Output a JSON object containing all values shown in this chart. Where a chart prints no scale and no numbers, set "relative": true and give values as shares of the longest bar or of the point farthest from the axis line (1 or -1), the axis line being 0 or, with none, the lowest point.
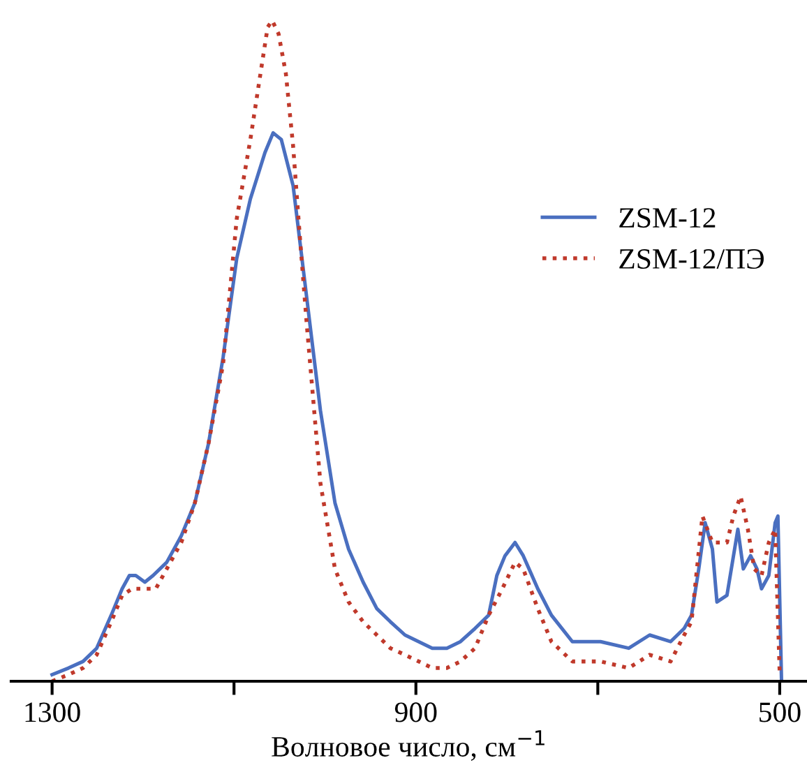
{
  "chart_data": {
    "type": "line",
    "relative": true,
    "xlabel": "Волновое число, см$^{−1}$",
    "xlim": [
      1345,
      470
    ],
    "xticks": [
      1300,
      {
        "value": 1100,
        "label": null
      },
      900,
      {
        "value": 700,
        "label": null
      },
      500
    ],
    "legend": "right",
    "grid": false,
    "series": [
      {
        "name": "ZSM-12",
        "color": "#4a6fc0",
        "line_style": "solid",
        "x": [
          1300,
          1282,
          1266,
          1251,
          1235,
          1223,
          1215,
          1208,
          1198,
          1189,
          1174,
          1158,
          1143,
          1128,
          1112,
          1097,
          1082,
          1066,
          1057,
          1048,
          1035,
          1020,
          1005,
          989,
          974,
          958,
          943,
          928,
          912,
          897,
          882,
          866,
          851,
          835,
          820,
          811,
          802,
          791,
          782,
          766,
          751,
          728,
          697,
          666,
          643,
          620,
          605,
          597,
          589,
          582,
          574,
          569,
          558,
          546,
          540,
          532,
          525,
          520,
          512,
          505,
          502,
          498
        ],
        "values": [
          0.01,
          0.02,
          0.03,
          0.05,
          0.1,
          0.14,
          0.16,
          0.16,
          0.15,
          0.16,
          0.18,
          0.22,
          0.27,
          0.36,
          0.49,
          0.64,
          0.73,
          0.8,
          0.83,
          0.82,
          0.75,
          0.58,
          0.41,
          0.27,
          0.2,
          0.15,
          0.11,
          0.09,
          0.07,
          0.06,
          0.05,
          0.05,
          0.06,
          0.08,
          0.1,
          0.16,
          0.19,
          0.21,
          0.19,
          0.14,
          0.1,
          0.06,
          0.06,
          0.05,
          0.07,
          0.06,
          0.08,
          0.1,
          0.17,
          0.24,
          0.2,
          0.12,
          0.13,
          0.23,
          0.17,
          0.19,
          0.17,
          0.14,
          0.16,
          0.24,
          0.25,
          0.0
        ]
      },
      {
        "name": "ZSM-12/ПЭ",
        "color": "#c0392b",
        "line_style": "dotted",
        "x": [
          1300,
          1282,
          1266,
          1251,
          1235,
          1223,
          1212,
          1205,
          1195,
          1186,
          1174,
          1158,
          1143,
          1128,
          1112,
          1097,
          1082,
          1072,
          1063,
          1058,
          1051,
          1043,
          1035,
          1028,
          1020,
          1005,
          989,
          974,
          958,
          943,
          928,
          912,
          897,
          882,
          866,
          851,
          835,
          820,
          805,
          791,
          782,
          766,
          751,
          728,
          697,
          666,
          643,
          620,
          605,
          597,
          585,
          574,
          566,
          558,
          551,
          543,
          535,
          528,
          520,
          512,
          505,
          500
        ],
        "values": [
          0.0,
          0.01,
          0.02,
          0.04,
          0.09,
          0.13,
          0.14,
          0.14,
          0.14,
          0.14,
          0.17,
          0.21,
          0.27,
          0.36,
          0.48,
          0.7,
          0.82,
          0.91,
          0.99,
          1.0,
          0.98,
          0.92,
          0.81,
          0.68,
          0.54,
          0.3,
          0.17,
          0.12,
          0.09,
          0.07,
          0.05,
          0.04,
          0.03,
          0.02,
          0.02,
          0.03,
          0.05,
          0.1,
          0.14,
          0.18,
          0.17,
          0.11,
          0.06,
          0.03,
          0.03,
          0.02,
          0.04,
          0.03,
          0.07,
          0.09,
          0.25,
          0.21,
          0.21,
          0.21,
          0.25,
          0.28,
          0.23,
          0.17,
          0.16,
          0.21,
          0.23,
          0.01
        ]
      }
    ]
  }
}
